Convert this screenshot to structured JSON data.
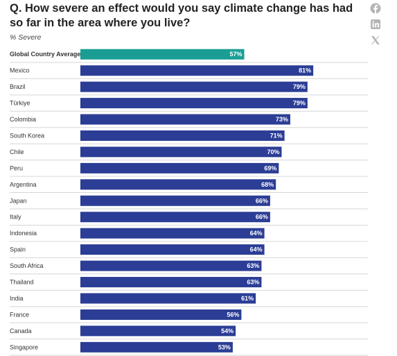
{
  "title": "Q. How severe an effect would you say climate change has had so far in the area where you live?",
  "share": {
    "facebook_icon": "facebook-icon",
    "linkedin_icon": "linkedin-icon",
    "x_icon": "x-icon"
  },
  "colors": {
    "highlight": "#1a9e94",
    "bar": "#2b3d95",
    "icon": "#b5b5b5"
  },
  "chart_data": {
    "type": "bar",
    "orientation": "horizontal",
    "subtitle": "% Severe",
    "xlim": [
      0,
      100
    ],
    "value_suffix": "%",
    "highlight_category": "Global Country Average",
    "categories": [
      "Global Country Average",
      "Mexico",
      "Brazil",
      "Türkiye",
      "Colombia",
      "South Korea",
      "Chile",
      "Peru",
      "Argentina",
      "Japan",
      "Italy",
      "Indonesia",
      "Spain",
      "South Africa",
      "Thailand",
      "India",
      "France",
      "Canada",
      "Singapore"
    ],
    "values": [
      57,
      81,
      79,
      79,
      73,
      71,
      70,
      69,
      68,
      66,
      66,
      64,
      64,
      63,
      63,
      61,
      56,
      54,
      53
    ]
  }
}
